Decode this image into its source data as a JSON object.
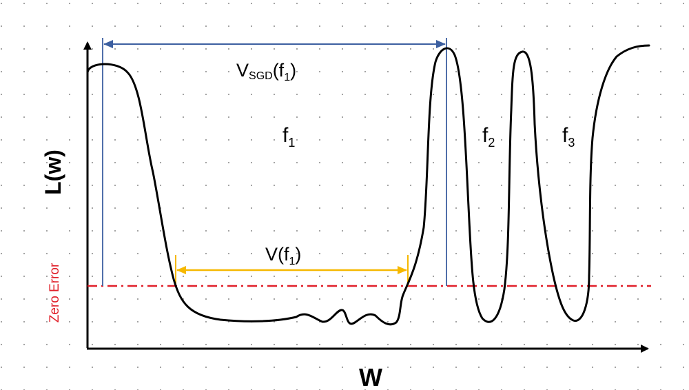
{
  "axes": {
    "y_label": "L(w)",
    "x_label": "W"
  },
  "reference_line": {
    "label": "Zero Error",
    "color": "#e0202a",
    "style": "dash-dot"
  },
  "regions": [
    {
      "name": "f",
      "subscript": "1"
    },
    {
      "name": "f",
      "subscript": "2"
    },
    {
      "name": "f",
      "subscript": "3"
    }
  ],
  "measures": {
    "sgd_width": {
      "prefix": "V",
      "prefix_sub": "SGD",
      "open": "(f",
      "arg_sub": "1",
      "close": ")",
      "color": "#3c5fa0"
    },
    "flat_width": {
      "prefix": "V",
      "open": "(f",
      "arg_sub": "1",
      "close": ")",
      "color": "#f6b800"
    }
  },
  "style": {
    "curve_color": "#000000",
    "dot_grid": true,
    "grid_color": "#9a9a9a"
  }
}
